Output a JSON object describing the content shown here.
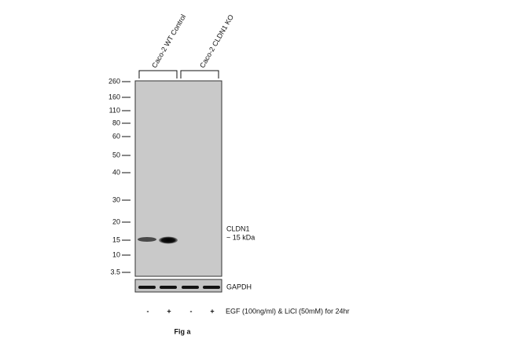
{
  "groups": [
    "Caco-2 WT Control",
    "Caco-2 CLDN1 KO"
  ],
  "markers": [
    "260",
    "160",
    "110",
    "80",
    "60",
    "50",
    "40",
    "30",
    "20",
    "15",
    "10",
    "3.5"
  ],
  "band_label": {
    "name": "CLDN1",
    "size": "~ 15 kDa"
  },
  "loading_control": "GAPDH",
  "treatment": {
    "signs": [
      "-",
      "+",
      "-",
      "+"
    ],
    "label": "EGF (100ng/ml) & LiCl (50mM) for 24hr"
  },
  "caption": "Fig a"
}
